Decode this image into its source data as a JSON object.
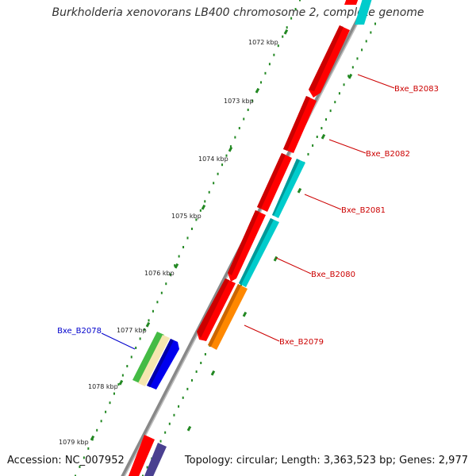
{
  "title": "Burkholderia xenovorans LB400 chromosome 2, complete genome",
  "footer": {
    "accession": "Accession: NC_007952",
    "summary": "Topology: circular; Length: 3,363,523 bp; Genes: 2,977"
  },
  "ticks": [
    "1072 kbp",
    "1073 kbp",
    "1074 kbp",
    "1075 kbp",
    "1076 kbp",
    "1077 kbp",
    "1078 kbp",
    "1079 kbp"
  ],
  "gene_labels": [
    {
      "name": "Bxe_B2083",
      "color": "#cc0000"
    },
    {
      "name": "Bxe_B2082",
      "color": "#cc0000"
    },
    {
      "name": "Bxe_B2081",
      "color": "#cc0000"
    },
    {
      "name": "Bxe_B2080",
      "color": "#cc0000"
    },
    {
      "name": "Bxe_B2079",
      "color": "#cc0000"
    },
    {
      "name": "Bxe_B2078",
      "color": "#0000cc"
    }
  ],
  "colors": {
    "backbone": "#8a8a8a",
    "cds_forward": "#ff0000",
    "cds_reverse": "#00cccc",
    "blue_gene": "#0000ee",
    "orange_gene": "#ff8800",
    "green_gene": "#44bb44",
    "cream_gene": "#f5e6b0",
    "purple_gene": "#4a4090",
    "dots": "#228822"
  }
}
